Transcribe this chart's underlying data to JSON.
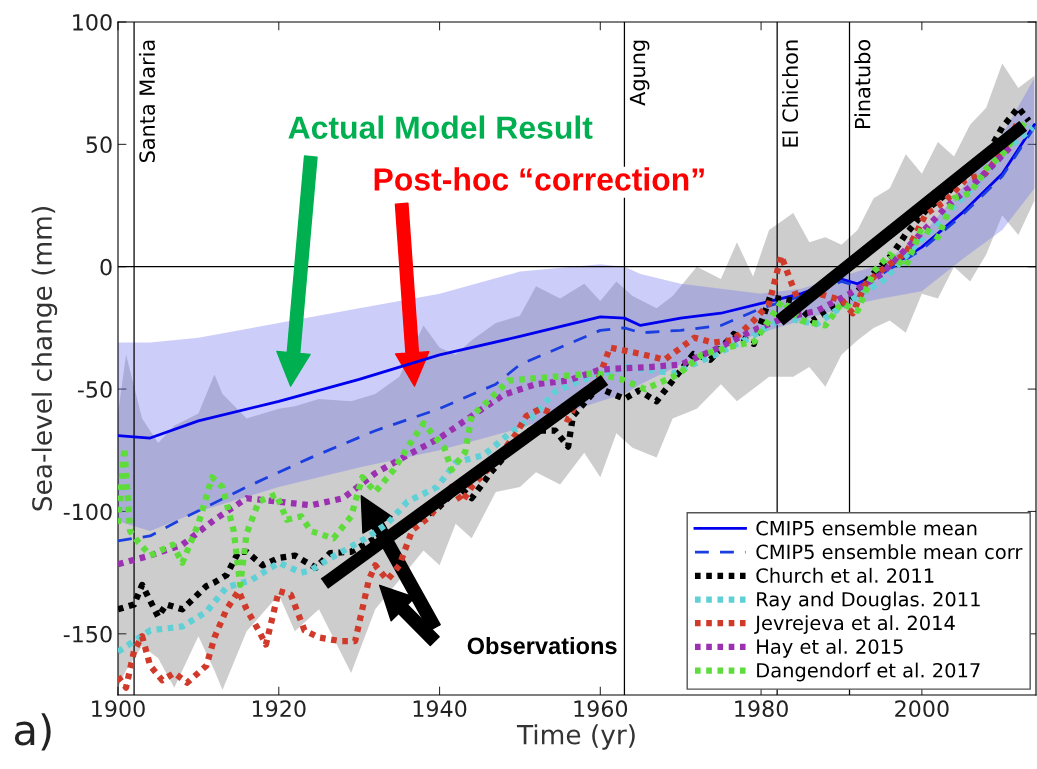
{
  "chart_data": {
    "type": "line",
    "xlabel": "Time (yr)",
    "ylabel": "Sea-level change (mm)",
    "xlim": [
      1900,
      2014.2
    ],
    "ylim": [
      -175,
      100
    ],
    "xticks": [
      1900,
      1920,
      1940,
      1960,
      1980,
      2000
    ],
    "yticks": [
      -150,
      -100,
      -50,
      0,
      50,
      100
    ],
    "grid": false,
    "legend": "bottom right",
    "ref_lines": [
      {
        "axis": "x",
        "value": 1902,
        "label": "Santa Maria",
        "color": "#000000"
      },
      {
        "axis": "x",
        "value": 1963,
        "label": "Agung",
        "color": "#000000"
      },
      {
        "axis": "x",
        "value": 1982,
        "label": "El Chichon",
        "color": "#000000"
      },
      {
        "axis": "x",
        "value": 1991,
        "label": "Pinatubo",
        "color": "#000000"
      },
      {
        "axis": "y",
        "value": 0,
        "color": "#000000"
      }
    ],
    "series": [
      {
        "type": "line",
        "color": "#c4c4c4",
        "x": [
          1900,
          1901,
          1903,
          1905,
          1907,
          1910,
          1912,
          1913,
          1916,
          1920,
          1922,
          1925,
          1929,
          1932,
          1935,
          1938,
          1940,
          1942,
          1944,
          1947,
          1950,
          1952,
          1955,
          1958,
          1960,
          1962,
          1964,
          1967,
          1969,
          1972,
          1975,
          1977,
          1979,
          1981,
          1984,
          1986,
          1988,
          1990,
          1992,
          1994,
          1996,
          1998,
          2000,
          2002,
          2004,
          2006,
          2008,
          2010,
          2012,
          2014
        ],
        "values": [
          null,
          null,
          null,
          null,
          null,
          null,
          null,
          null,
          null,
          null,
          null,
          null,
          null,
          null,
          null,
          null,
          null,
          null,
          null,
          null,
          null,
          null,
          null,
          null,
          null,
          null,
          null,
          null,
          null,
          null,
          null,
          null,
          null,
          null,
          null,
          null,
          null,
          null,
          null,
          null,
          null,
          null,
          null,
          null,
          null,
          null,
          null,
          null,
          null,
          null
        ],
        "upper": [
          -60,
          -36,
          -62,
          -72,
          -65,
          -60,
          -44,
          -52,
          -62,
          -58,
          -57,
          -54,
          -55,
          -52,
          -45,
          -24,
          -33,
          -36,
          -30,
          -23,
          -20,
          -8,
          -13,
          -7,
          -14,
          -6,
          -12,
          -17,
          -12,
          0,
          -5,
          10,
          -4,
          15,
          22,
          10,
          12,
          9,
          15,
          28,
          32,
          46,
          38,
          51,
          45,
          58,
          65,
          83,
          73,
          78
        ],
        "lower": [
          -172,
          -165,
          -155,
          -160,
          -172,
          -151,
          -165,
          -173,
          -149,
          -134,
          -149,
          -140,
          -166,
          -140,
          -128,
          -116,
          -122,
          -105,
          -111,
          -92,
          -90,
          -84,
          -89,
          -76,
          -86,
          -68,
          -74,
          -78,
          -62,
          -58,
          -48,
          -55,
          -50,
          -45,
          -45,
          -41,
          -49,
          -36,
          -30,
          -25,
          -22,
          -27,
          -11,
          -13,
          0,
          -6,
          5,
          21,
          13,
          27
        ]
      },
      {
        "name": "CMIP5 ensemble mean",
        "color": "#0000ee",
        "line_style": "solid",
        "x": [
          1900,
          1904,
          1910,
          1920,
          1930,
          1940,
          1950,
          1960,
          1963,
          1965,
          1970,
          1975,
          1980,
          1985,
          1990,
          1992,
          1995,
          2000,
          2005,
          2010,
          2014
        ],
        "values": [
          -69,
          -70,
          -63,
          -55,
          -46,
          -36,
          -28.5,
          -20.5,
          -21,
          -24,
          -21,
          -19,
          -15,
          -11,
          -5,
          -7,
          -2,
          8,
          22,
          38,
          58
        ],
        "lower": [
          -104,
          -108,
          -100,
          -90,
          -82,
          -75,
          -66,
          -55,
          -52,
          -48,
          -40,
          -33,
          -27,
          -22,
          -17,
          -15,
          -13,
          -10,
          3,
          15,
          32
        ],
        "upper": [
          -31,
          -31,
          -29,
          -23,
          -17,
          -11,
          -2,
          1,
          0,
          -3,
          -7,
          -9,
          -11,
          -9,
          -4,
          -2,
          1,
          13,
          32,
          54,
          77
        ]
      },
      {
        "name": "CMIP5 ensemble mean corr",
        "color": "#1a3ee0",
        "line_style": "dashed",
        "x": [
          1900,
          1904,
          1908,
          1916,
          1924,
          1932,
          1940,
          1947,
          1950,
          1960,
          1963,
          1965,
          1970,
          1975,
          1980,
          1985,
          1990,
          1992,
          1995,
          2000,
          2005,
          2010,
          2014
        ],
        "values": [
          -112,
          -110,
          -103,
          -90,
          -78,
          -67,
          -58,
          -48,
          -40,
          -26,
          -25,
          -27,
          -26,
          -24,
          -17,
          -12,
          -6,
          -8,
          -3,
          7,
          21,
          37,
          57
        ]
      },
      {
        "name": "Church et al. 2011",
        "color": "#000000",
        "line_style": "dotted",
        "x": [
          1900,
          1902,
          1903,
          1905,
          1906,
          1908,
          1911,
          1912,
          1913.5,
          1915,
          1916,
          1918,
          1920,
          1922,
          1924.6,
          1926.4,
          1929,
          1932,
          1934,
          1936.6,
          1939.7,
          1942.4,
          1944,
          1946.4,
          1948.6,
          1951.2,
          1954.4,
          1956,
          1956.6,
          1959.7,
          1963,
          1964.8,
          1967,
          1971.6,
          1973.7,
          1976.6,
          1979.1,
          1981.1,
          1984,
          1986.4,
          1988.9,
          1991,
          1993.5,
          1996.3,
          1998,
          2000.5,
          2003,
          2005.4,
          2007.9,
          2010,
          2012,
          2013.3
        ],
        "values": [
          -140,
          -138,
          -130,
          -143,
          -138,
          -140,
          -130.5,
          -129,
          -126,
          -116.5,
          -116.5,
          -122,
          -119,
          -118,
          -123,
          -117,
          -116.5,
          -111,
          -111,
          -105,
          -99,
          -90,
          -94.6,
          -84,
          -75.7,
          -67,
          -67,
          -73.5,
          -61,
          -49.4,
          -54,
          -50.6,
          -55,
          -35.6,
          -38,
          -27.5,
          -31.5,
          -12.5,
          -13.8,
          -22,
          -16.7,
          -13.8,
          -4.4,
          5,
          13.3,
          23,
          29.6,
          37.7,
          44.6,
          56.9,
          65,
          59.6
        ]
      },
      {
        "name": "Ray and Douglas. 2011",
        "color": "#5fd0d6",
        "line_style": "dotted",
        "x": [
          1900,
          1902,
          1904,
          1908,
          1911,
          1913.5,
          1916.6,
          1920,
          1922.8,
          1924,
          1927,
          1930.8,
          1933.5,
          1936,
          1939.7,
          1942,
          1945.5,
          1948.6,
          1951.2,
          1954.4,
          1957.5,
          1963.3,
          1969.1,
          1974.5,
          1978.6,
          1982.8,
          1986.9,
          1991.1,
          1995.2,
          1999.4,
          2003.5,
          2007.6,
          2010.9,
          2013.8
        ],
        "values": [
          -157.3,
          -153,
          -148.6,
          -147,
          -141,
          -131,
          -128,
          -121,
          -125,
          -124,
          -118,
          -111,
          -105,
          -96,
          -90,
          -80,
          -77,
          -68.4,
          -62.5,
          -51,
          -46.5,
          -41,
          -43.5,
          -35.6,
          -29,
          -20.8,
          -23.5,
          -13.8,
          -5.6,
          9.3,
          23,
          36.6,
          48.8,
          57
        ]
      },
      {
        "name": "Jevrejeva et al. 2014",
        "color": "#d03a2a",
        "line_style": "dotted",
        "x": [
          1900,
          1901,
          1902,
          1903,
          1904,
          1905.5,
          1907,
          1908.6,
          1911,
          1912,
          1913.5,
          1915,
          1916,
          1917.5,
          1918.4,
          1920,
          1921.5,
          1923.2,
          1925,
          1927.7,
          1929.5,
          1931.2,
          1932,
          1933.5,
          1935,
          1936.6,
          1938.8,
          1941.5,
          1942.8,
          1944,
          1946.8,
          1949.5,
          1950.8,
          1952.6,
          1956,
          1957.5,
          1959.7,
          1961.2,
          1965,
          1968,
          1971.7,
          1974,
          1976.5,
          1979.1,
          1981,
          1982.5,
          1984.6,
          1987.2,
          1990.1,
          1991.4,
          1993,
          1995.5,
          1998,
          2000.5,
          2003,
          2005.4,
          2007.9,
          2010.4,
          2012
        ],
        "values": [
          -167.5,
          -172,
          -157,
          -151,
          -163,
          -169,
          -166,
          -170,
          -163,
          -151.5,
          -140,
          -132.5,
          -140,
          -148.6,
          -154.4,
          -132.5,
          -134,
          -148.6,
          -151.5,
          -153,
          -153,
          -128,
          -122,
          -128,
          -122,
          -107.7,
          -102,
          -90,
          -96,
          -90,
          -80,
          -68.4,
          -61,
          -58,
          -62.5,
          -52.3,
          -46.5,
          -33,
          -35.6,
          -38,
          -29,
          -31,
          -30,
          -22,
          -15,
          4.5,
          -13.8,
          -11,
          -13.8,
          -19,
          -7,
          0,
          5.4,
          21.6,
          27,
          35.4,
          38,
          48.8,
          59.6
        ]
      },
      {
        "name": "Hay et al. 2015",
        "color": "#9b30b0",
        "line_style": "dotted",
        "x": [
          1900,
          1904,
          1908,
          1912,
          1916,
          1920,
          1924,
          1928,
          1932,
          1936,
          1940,
          1944,
          1948,
          1952,
          1956,
          1960,
          1966,
          1970,
          1975,
          1979,
          1983,
          1987,
          1991,
          1995,
          1999,
          2003,
          2007,
          2011
        ],
        "values": [
          -121.6,
          -118,
          -113.6,
          -103.4,
          -94.6,
          -96,
          -97.5,
          -94.6,
          -84.4,
          -77,
          -70,
          -61,
          -52.3,
          -48,
          -46.5,
          -42,
          -41,
          -40,
          -32.7,
          -26,
          -20.8,
          -18,
          -11,
          -3,
          10.6,
          24.3,
          35.4,
          48.8
        ]
      },
      {
        "name": "Dangendorf et al. 2017",
        "color": "#5ddc3c",
        "line_style": "dotted",
        "x": [
          1900,
          1900.8,
          1901.5,
          1902.4,
          1904,
          1906.8,
          1908,
          1910,
          1911.7,
          1913,
          1914.4,
          1915.2,
          1916,
          1917.5,
          1919.7,
          1921,
          1922.8,
          1924,
          1926.8,
          1929,
          1930.4,
          1932,
          1934.3,
          1936,
          1938,
          1940.6,
          1941.5,
          1943.2,
          1944,
          1946,
          1948.6,
          1959.5,
          1962.8,
          1965.6,
          1969.7,
          1972.6,
          1975.9,
          1979.2,
          1982.6,
          1985,
          1988,
          1990,
          1992,
          1994,
          1996,
          1998,
          2000,
          2002,
          2004,
          2006,
          2008,
          2010,
          2012,
          2013
        ],
        "values": [
          -105,
          -74,
          -108,
          -112,
          -118,
          -113.6,
          -121,
          -105,
          -86,
          -90,
          -108,
          -130,
          -109,
          -96,
          -93,
          -103.4,
          -102,
          -108,
          -111,
          -102,
          -86,
          -92,
          -83,
          -74,
          -64,
          -74,
          -83,
          -75.7,
          -61,
          -55,
          -46.5,
          -43.5,
          -46.2,
          -50,
          -44,
          -36,
          -33,
          -30.5,
          -14,
          -22,
          -24,
          -15,
          -18,
          -2,
          5,
          0,
          16,
          12,
          28,
          30,
          40,
          46,
          55,
          60
        ]
      },
      {
        "type": "line",
        "color": "#000000",
        "line_style": "solid",
        "x": [
          1926.3,
          1959.9
        ],
        "values": [
          -128,
          -47.8
        ]
      },
      {
        "type": "line",
        "color": "#000000",
        "line_style": "solid",
        "x": [
          1982.9,
          2012
        ],
        "values": [
          -20.4,
          56
        ]
      }
    ],
    "annotations": [
      "Actual Model Result",
      "Post-hoc “correction”",
      "Observations",
      "a)"
    ]
  }
}
